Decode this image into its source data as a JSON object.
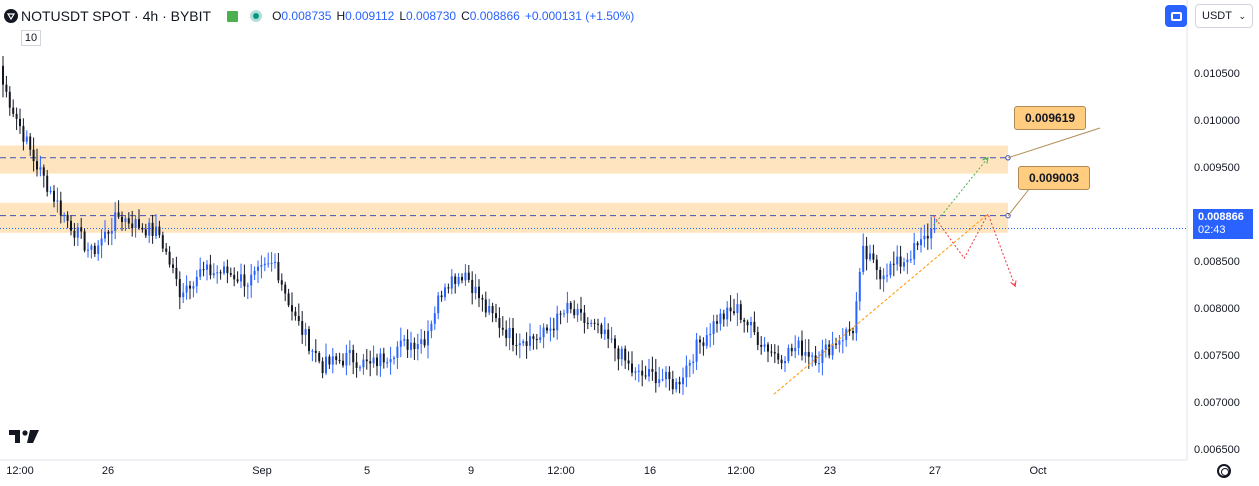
{
  "header": {
    "symbol": "NOTUSDT SPOT · 4h · BYBIT",
    "ohlc": [
      {
        "k": "O",
        "v": "0.008735"
      },
      {
        "k": "H",
        "v": "0.009112"
      },
      {
        "k": "L",
        "v": "0.008730"
      },
      {
        "k": "C",
        "v": "0.008866"
      },
      {
        "k": "",
        "v": "+0.000131 (+1.50%)"
      }
    ],
    "volume_indicator": "10"
  },
  "toolbar": {
    "currency": "USDT",
    "currency_chevron": "⌄"
  },
  "current_price": {
    "value": "0.008866",
    "countdown": "02:43"
  },
  "colors": {
    "up": "#2962ff",
    "down": "#131722",
    "zone": "#ffcc80",
    "level_line": "#3f51b5",
    "trendline": "#ff9800",
    "arrow_up": "#4caf50",
    "arrow_down": "#f23645",
    "price_badge": "#2962ff"
  },
  "chart_data": {
    "type": "candlestick",
    "symbol": "NOTUSDT",
    "exchange": "BYBIT",
    "interval": "4h",
    "y_axis": {
      "range": [
        0.0064,
        0.0113
      ],
      "ticks": [
        "0.010500",
        "0.010000",
        "0.009500",
        "0.009000",
        "0.008500",
        "0.008000",
        "0.007500",
        "0.007000",
        "0.006500"
      ]
    },
    "x_axis": {
      "tick_labels": [
        "12:00",
        "26",
        "Sep",
        "5",
        "9",
        "12:00",
        "16",
        "12:00",
        "23",
        "27",
        "Oct"
      ]
    },
    "anchors": [
      {
        "x": 0,
        "y": 0.0104
      },
      {
        "x": 9,
        "y": 0.0096
      },
      {
        "x": 18,
        "y": 0.009
      },
      {
        "x": 26,
        "y": 0.0086
      },
      {
        "x": 34,
        "y": 0.009
      },
      {
        "x": 40,
        "y": 0.0089
      },
      {
        "x": 46,
        "y": 0.0088
      },
      {
        "x": 52,
        "y": 0.0082
      },
      {
        "x": 58,
        "y": 0.0084
      },
      {
        "x": 66,
        "y": 0.0084
      },
      {
        "x": 72,
        "y": 0.0083
      },
      {
        "x": 80,
        "y": 0.0085
      },
      {
        "x": 86,
        "y": 0.0079
      },
      {
        "x": 94,
        "y": 0.0074
      },
      {
        "x": 102,
        "y": 0.0075
      },
      {
        "x": 108,
        "y": 0.0074
      },
      {
        "x": 116,
        "y": 0.0076
      },
      {
        "x": 124,
        "y": 0.0077
      },
      {
        "x": 130,
        "y": 0.0083
      },
      {
        "x": 136,
        "y": 0.0084
      },
      {
        "x": 142,
        "y": 0.008
      },
      {
        "x": 150,
        "y": 0.0077
      },
      {
        "x": 158,
        "y": 0.0077
      },
      {
        "x": 166,
        "y": 0.008
      },
      {
        "x": 174,
        "y": 0.0078
      },
      {
        "x": 180,
        "y": 0.0076
      },
      {
        "x": 186,
        "y": 0.0073
      },
      {
        "x": 192,
        "y": 0.0073
      },
      {
        "x": 198,
        "y": 0.0072
      },
      {
        "x": 204,
        "y": 0.0076
      },
      {
        "x": 210,
        "y": 0.0079
      },
      {
        "x": 216,
        "y": 0.008
      },
      {
        "x": 222,
        "y": 0.0077
      },
      {
        "x": 228,
        "y": 0.0075
      },
      {
        "x": 234,
        "y": 0.0076
      },
      {
        "x": 240,
        "y": 0.0075
      },
      {
        "x": 246,
        "y": 0.0077
      },
      {
        "x": 250,
        "y": 0.0078
      },
      {
        "x": 253,
        "y": 0.0086
      },
      {
        "x": 258,
        "y": 0.0084
      },
      {
        "x": 264,
        "y": 0.0085
      },
      {
        "x": 270,
        "y": 0.0087
      },
      {
        "x": 274,
        "y": 0.0089
      }
    ],
    "zones": [
      {
        "from": 0.00945,
        "to": 0.00975,
        "level": 0.009619
      },
      {
        "from": 0.00882,
        "to": 0.00914,
        "level": 0.009003
      }
    ],
    "callouts": [
      "0.009619",
      "0.009003"
    ],
    "trendline": [
      {
        "x": 227,
        "y": 0.0071
      },
      {
        "x": 290,
        "y": 0.00902
      }
    ],
    "projection_up": [
      {
        "x": 274,
        "y": 0.0089
      },
      {
        "x": 290,
        "y": 0.00962
      }
    ],
    "projection_down": [
      {
        "x": 274,
        "y": 0.009
      },
      {
        "x": 283,
        "y": 0.00855
      },
      {
        "x": 290,
        "y": 0.00902
      },
      {
        "x": 298,
        "y": 0.00825
      }
    ],
    "current_price": 0.008866
  }
}
